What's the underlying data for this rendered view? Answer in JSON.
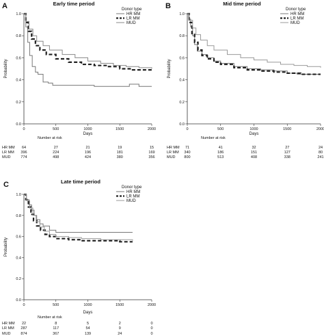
{
  "chart_data": [
    {
      "panel": "A",
      "type": "line",
      "title": "Early time period",
      "xlabel": "Days",
      "ylabel": "Probability",
      "xlim": [
        0,
        2000
      ],
      "ylim": [
        0,
        1.0
      ],
      "xticks": [
        "0",
        "500",
        "1000",
        "1500",
        "2000"
      ],
      "yticks": [
        "0.0",
        "0.2",
        "0.4",
        "0.6",
        "0.8",
        "1.0"
      ],
      "legend_title": "Donor type",
      "legend_position": "top-right",
      "series": [
        {
          "name": "HR MM",
          "style": "solid-gray",
          "color": "#777777",
          "points": [
            [
              0,
              1.0
            ],
            [
              30,
              0.88
            ],
            [
              60,
              0.74
            ],
            [
              90,
              0.62
            ],
            [
              130,
              0.52
            ],
            [
              180,
              0.47
            ],
            [
              220,
              0.45
            ],
            [
              300,
              0.38
            ],
            [
              380,
              0.37
            ],
            [
              450,
              0.35
            ],
            [
              700,
              0.35
            ],
            [
              1000,
              0.35
            ],
            [
              1100,
              0.34
            ],
            [
              1550,
              0.34
            ],
            [
              1650,
              0.36
            ],
            [
              1750,
              0.36
            ],
            [
              1800,
              0.34
            ],
            [
              2000,
              0.34
            ]
          ]
        },
        {
          "name": "LR MM",
          "style": "dashed-black",
          "color": "#222222",
          "points": [
            [
              0,
              1.0
            ],
            [
              30,
              0.92
            ],
            [
              70,
              0.84
            ],
            [
              120,
              0.77
            ],
            [
              180,
              0.71
            ],
            [
              250,
              0.67
            ],
            [
              350,
              0.63
            ],
            [
              500,
              0.59
            ],
            [
              700,
              0.56
            ],
            [
              900,
              0.54
            ],
            [
              1100,
              0.53
            ],
            [
              1300,
              0.52
            ],
            [
              1500,
              0.5
            ],
            [
              1700,
              0.49
            ],
            [
              2000,
              0.48
            ]
          ]
        },
        {
          "name": "MUD",
          "style": "solid-gray",
          "color": "#888888",
          "points": [
            [
              0,
              1.0
            ],
            [
              30,
              0.93
            ],
            [
              80,
              0.86
            ],
            [
              140,
              0.8
            ],
            [
              200,
              0.75
            ],
            [
              300,
              0.71
            ],
            [
              400,
              0.67
            ],
            [
              600,
              0.63
            ],
            [
              800,
              0.6
            ],
            [
              1000,
              0.57
            ],
            [
              1200,
              0.55
            ],
            [
              1400,
              0.53
            ],
            [
              1600,
              0.52
            ],
            [
              1800,
              0.51
            ],
            [
              2000,
              0.5
            ]
          ]
        }
      ],
      "risk_table": {
        "header": "Number at risk",
        "times": [
          0,
          500,
          1000,
          1500,
          2000
        ],
        "rows": [
          {
            "label": "HR MM",
            "values": [
              "64",
              "27",
              "21",
              "19",
              "15"
            ]
          },
          {
            "label": "LR MM",
            "values": [
              "396",
              "224",
              "196",
              "181",
              "169"
            ]
          },
          {
            "label": "MUD",
            "values": [
              "774",
              "498",
              "424",
              "380",
              "356"
            ]
          }
        ]
      }
    },
    {
      "panel": "B",
      "type": "line",
      "title": "Mid time period",
      "xlabel": "Days",
      "ylabel": "Probability",
      "xlim": [
        0,
        2000
      ],
      "ylim": [
        0,
        1.0
      ],
      "xticks": [
        "0",
        "500",
        "1000",
        "1500",
        "2000"
      ],
      "yticks": [
        "0.0",
        "0.2",
        "0.4",
        "0.6",
        "0.8",
        "1.0"
      ],
      "legend_title": "Donor type",
      "legend_position": "top-right",
      "series": [
        {
          "name": "HR MM",
          "style": "solid-gray",
          "color": "#777777",
          "points": [
            [
              0,
              1.0
            ],
            [
              20,
              0.95
            ],
            [
              50,
              0.88
            ],
            [
              80,
              0.8
            ],
            [
              110,
              0.72
            ],
            [
              150,
              0.66
            ],
            [
              220,
              0.63
            ],
            [
              300,
              0.6
            ],
            [
              400,
              0.57
            ],
            [
              500,
              0.55
            ],
            [
              700,
              0.52
            ],
            [
              900,
              0.5
            ],
            [
              1100,
              0.49
            ],
            [
              1300,
              0.48
            ],
            [
              1500,
              0.46
            ],
            [
              1650,
              0.45
            ],
            [
              1800,
              0.45
            ],
            [
              2000,
              0.45
            ]
          ]
        },
        {
          "name": "LR MM",
          "style": "dashed-black",
          "color": "#222222",
          "points": [
            [
              0,
              1.0
            ],
            [
              30,
              0.92
            ],
            [
              70,
              0.82
            ],
            [
              110,
              0.74
            ],
            [
              160,
              0.67
            ],
            [
              220,
              0.62
            ],
            [
              300,
              0.59
            ],
            [
              400,
              0.56
            ],
            [
              500,
              0.54
            ],
            [
              700,
              0.51
            ],
            [
              900,
              0.49
            ],
            [
              1100,
              0.48
            ],
            [
              1300,
              0.47
            ],
            [
              1500,
              0.46
            ],
            [
              1700,
              0.45
            ],
            [
              2000,
              0.45
            ]
          ]
        },
        {
          "name": "MUD",
          "style": "solid-gray",
          "color": "#999999",
          "points": [
            [
              0,
              1.0
            ],
            [
              30,
              0.94
            ],
            [
              80,
              0.87
            ],
            [
              130,
              0.81
            ],
            [
              200,
              0.76
            ],
            [
              300,
              0.71
            ],
            [
              400,
              0.67
            ],
            [
              600,
              0.63
            ],
            [
              800,
              0.6
            ],
            [
              1000,
              0.58
            ],
            [
              1200,
              0.56
            ],
            [
              1400,
              0.54
            ],
            [
              1600,
              0.53
            ],
            [
              1800,
              0.52
            ],
            [
              2000,
              0.51
            ]
          ]
        }
      ],
      "risk_table": {
        "header": "Number at risk",
        "times": [
          0,
          500,
          1000,
          1500,
          2000
        ],
        "rows": [
          {
            "label": "HR MM",
            "values": [
              "71",
              "41",
              "32",
              "27",
              "24"
            ]
          },
          {
            "label": "LR MM",
            "values": [
              "340",
              "186",
              "151",
              "127",
              "80"
            ]
          },
          {
            "label": "MUD",
            "values": [
              "800",
              "513",
              "408",
              "338",
              "241"
            ]
          }
        ]
      }
    },
    {
      "panel": "C",
      "type": "line",
      "title": "Late time period",
      "xlabel": "Days",
      "ylabel": "Probability",
      "xlim": [
        0,
        2000
      ],
      "ylim": [
        0,
        1.0
      ],
      "xticks": [
        "0",
        "500",
        "1000",
        "1500",
        "2000"
      ],
      "yticks": [
        "0.0",
        "0.2",
        "0.4",
        "0.6",
        "0.8",
        "1.0"
      ],
      "legend_title": "Donor type",
      "legend_position": "top-right",
      "series": [
        {
          "name": "HR MM",
          "style": "solid-gray",
          "color": "#777777",
          "points": [
            [
              0,
              1.0
            ],
            [
              40,
              0.95
            ],
            [
              80,
              0.9
            ],
            [
              120,
              0.85
            ],
            [
              160,
              0.8
            ],
            [
              200,
              0.76
            ],
            [
              250,
              0.72
            ],
            [
              300,
              0.7
            ],
            [
              400,
              0.66
            ],
            [
              500,
              0.64
            ],
            [
              600,
              0.64
            ],
            [
              1700,
              0.64
            ]
          ]
        },
        {
          "name": "LR MM",
          "style": "dashed-black",
          "color": "#222222",
          "points": [
            [
              0,
              1.0
            ],
            [
              30,
              0.95
            ],
            [
              70,
              0.88
            ],
            [
              110,
              0.81
            ],
            [
              150,
              0.75
            ],
            [
              200,
              0.7
            ],
            [
              260,
              0.66
            ],
            [
              330,
              0.62
            ],
            [
              400,
              0.6
            ],
            [
              500,
              0.58
            ],
            [
              700,
              0.57
            ],
            [
              900,
              0.56
            ],
            [
              1200,
              0.56
            ],
            [
              1500,
              0.55
            ],
            [
              1700,
              0.55
            ]
          ]
        },
        {
          "name": "MUD",
          "style": "solid-gray",
          "color": "#999999",
          "points": [
            [
              0,
              1.0
            ],
            [
              40,
              0.94
            ],
            [
              90,
              0.87
            ],
            [
              140,
              0.8
            ],
            [
              190,
              0.74
            ],
            [
              250,
              0.69
            ],
            [
              320,
              0.65
            ],
            [
              400,
              0.62
            ],
            [
              500,
              0.6
            ],
            [
              700,
              0.59
            ],
            [
              900,
              0.58
            ],
            [
              1200,
              0.57
            ],
            [
              1500,
              0.57
            ],
            [
              1700,
              0.56
            ]
          ]
        }
      ],
      "risk_table": {
        "header": "Number at risk",
        "times": [
          0,
          500,
          1000,
          1500,
          2000
        ],
        "rows": [
          {
            "label": "HR MM",
            "values": [
              "22",
              "8",
              "5",
              "2",
              "0"
            ]
          },
          {
            "label": "LR MM",
            "values": [
              "287",
              "117",
              "54",
              "9",
              "0"
            ]
          },
          {
            "label": "MUD",
            "values": [
              "874",
              "367",
              "139",
              "24",
              "0"
            ]
          }
        ]
      }
    }
  ]
}
